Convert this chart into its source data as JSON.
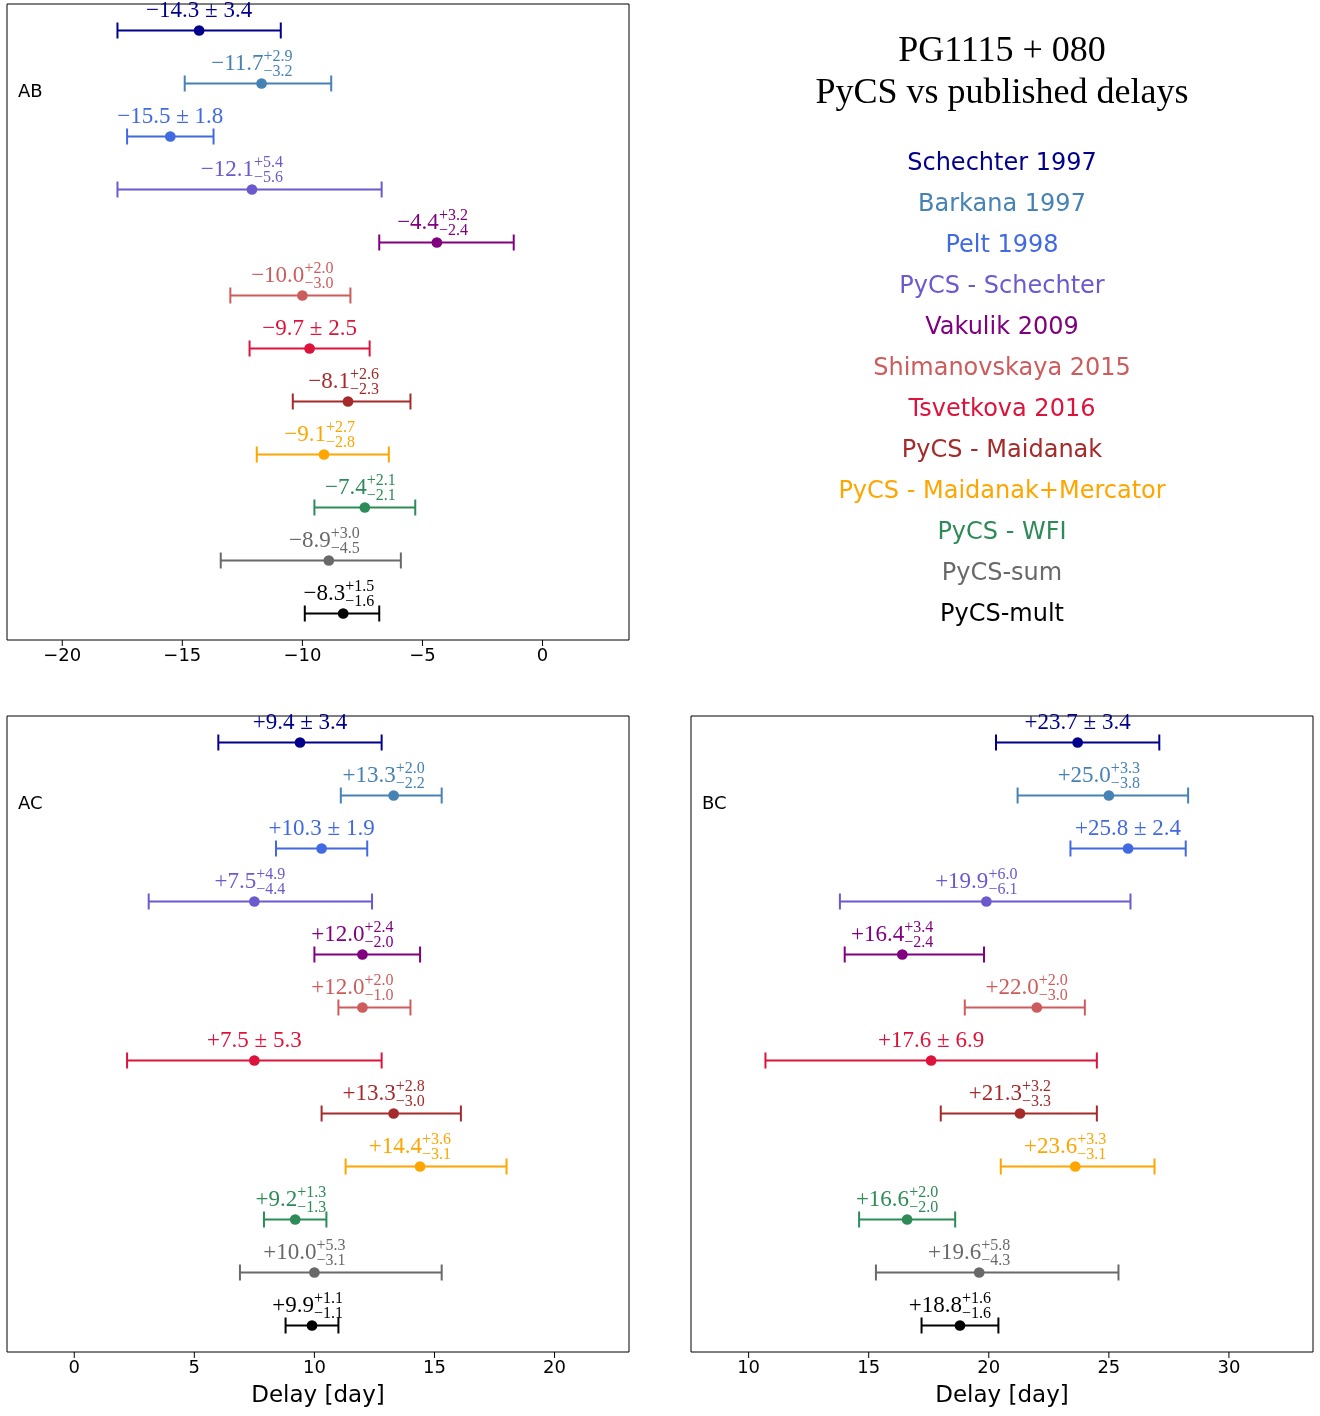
{
  "chart_data": [
    {
      "type": "scatter",
      "orientation": "horizontal",
      "legend": "right",
      "marker": "circle",
      "tick_labels": "x",
      "annotations": [
        "AB"
      ],
      "categories": [
        null,
        null,
        null,
        null,
        null,
        null,
        null,
        null,
        null,
        null,
        null,
        null
      ],
      "xlim": [
        -22.3,
        3.6
      ],
      "xticks": [
        -20,
        -15,
        -10,
        -5,
        0
      ],
      "series": [
        {
          "name": "Schechter 1997",
          "color": "#00008b",
          "values": [
            -14.3,
            null,
            null,
            null,
            null,
            null,
            null,
            null,
            null,
            null,
            null,
            null
          ],
          "errors": [
            3.4,
            null,
            null,
            null,
            null,
            null,
            null,
            null,
            null,
            null,
            null,
            null
          ],
          "value_labels": [
            "−14.3 ± 3.4",
            null,
            null,
            null,
            null,
            null,
            null,
            null,
            null,
            null,
            null,
            null
          ]
        },
        {
          "name": "Barkana 1997",
          "color": "#4682b4",
          "values": [
            null,
            -11.7,
            null,
            null,
            null,
            null,
            null,
            null,
            null,
            null,
            null,
            null
          ],
          "errors": [
            null,
            [
              -14.9,
              -8.8
            ],
            null,
            null,
            null,
            null,
            null,
            null,
            null,
            null,
            null,
            null
          ],
          "value_labels": [
            null,
            "−11.7$^{+2.9}$$_{−3.2}$",
            null,
            null,
            null,
            null,
            null,
            null,
            null,
            null,
            null,
            null
          ]
        },
        {
          "name": "Pelt 1998",
          "color": "#4169e1",
          "values": [
            null,
            null,
            -15.5,
            null,
            null,
            null,
            null,
            null,
            null,
            null,
            null,
            null
          ],
          "errors": [
            null,
            null,
            1.8,
            null,
            null,
            null,
            null,
            null,
            null,
            null,
            null,
            null
          ],
          "value_labels": [
            null,
            null,
            "−15.5 ± 1.8",
            null,
            null,
            null,
            null,
            null,
            null,
            null,
            null,
            null
          ]
        },
        {
          "name": "PyCS - Schechter",
          "color": "#6a5acd",
          "values": [
            null,
            null,
            null,
            -12.1,
            null,
            null,
            null,
            null,
            null,
            null,
            null,
            null
          ],
          "errors": [
            null,
            null,
            null,
            [
              -17.7,
              -6.7
            ],
            null,
            null,
            null,
            null,
            null,
            null,
            null,
            null
          ],
          "value_labels": [
            null,
            null,
            null,
            "−12.1$^{+5.4}$$_{−5.6}$",
            null,
            null,
            null,
            null,
            null,
            null,
            null,
            null
          ]
        },
        {
          "name": "Vakulik 2009",
          "color": "#800080",
          "values": [
            null,
            null,
            null,
            null,
            -4.4,
            null,
            null,
            null,
            null,
            null,
            null,
            null
          ],
          "errors": [
            null,
            null,
            null,
            null,
            [
              -6.8,
              -1.2
            ],
            null,
            null,
            null,
            null,
            null,
            null,
            null
          ],
          "value_labels": [
            null,
            null,
            null,
            null,
            "−4.4$^{+3.2}$$_{−2.4}$",
            null,
            null,
            null,
            null,
            null,
            null,
            null
          ]
        },
        {
          "name": "Shimanovskaya 2015",
          "color": "#cd5c5c",
          "values": [
            null,
            null,
            null,
            null,
            null,
            -10.0,
            null,
            null,
            null,
            null,
            null,
            null
          ],
          "errors": [
            null,
            null,
            null,
            null,
            null,
            [
              -13.0,
              -8.0
            ],
            null,
            null,
            null,
            null,
            null,
            null
          ],
          "value_labels": [
            null,
            null,
            null,
            null,
            null,
            "−10.0$^{+2.0}$$_{−3.0}$",
            null,
            null,
            null,
            null,
            null,
            null
          ]
        },
        {
          "name": "Tsvetkova 2016",
          "color": "#dc143c",
          "values": [
            null,
            null,
            null,
            null,
            null,
            null,
            -9.7,
            null,
            null,
            null,
            null,
            null
          ],
          "errors": [
            null,
            null,
            null,
            null,
            null,
            null,
            2.5,
            null,
            null,
            null,
            null,
            null
          ],
          "value_labels": [
            null,
            null,
            null,
            null,
            null,
            null,
            "−9.7 ± 2.5",
            null,
            null,
            null,
            null,
            null
          ]
        },
        {
          "name": "PyCS - Maidanak",
          "color": "#a52a2a",
          "values": [
            null,
            null,
            null,
            null,
            null,
            null,
            null,
            -8.1,
            null,
            null,
            null,
            null
          ],
          "errors": [
            null,
            null,
            null,
            null,
            null,
            null,
            null,
            [
              -10.4,
              -5.5
            ],
            null,
            null,
            null,
            null
          ],
          "value_labels": [
            null,
            null,
            null,
            null,
            null,
            null,
            null,
            "−8.1$^{+2.6}$$_{−2.3}$",
            null,
            null,
            null,
            null
          ]
        },
        {
          "name": "PyCS - Maidanak+Mercator",
          "color": "#ffa500",
          "values": [
            null,
            null,
            null,
            null,
            null,
            null,
            null,
            null,
            -9.1,
            null,
            null,
            null
          ],
          "errors": [
            null,
            null,
            null,
            null,
            null,
            null,
            null,
            null,
            [
              -11.9,
              -6.4
            ],
            null,
            null,
            null
          ],
          "value_labels": [
            null,
            null,
            null,
            null,
            null,
            null,
            null,
            null,
            "−9.1$^{+2.7}$$_{−2.8}$",
            null,
            null,
            null
          ]
        },
        {
          "name": "PyCS - WFI",
          "color": "#2e8b57",
          "values": [
            null,
            null,
            null,
            null,
            null,
            null,
            null,
            null,
            null,
            -7.4,
            null,
            null
          ],
          "errors": [
            null,
            null,
            null,
            null,
            null,
            null,
            null,
            null,
            null,
            [
              -9.5,
              -5.3
            ],
            null,
            null
          ],
          "value_labels": [
            null,
            null,
            null,
            null,
            null,
            null,
            null,
            null,
            null,
            "−7.4$^{+2.1}$$_{−2.1}$",
            null,
            null
          ]
        },
        {
          "name": "PyCS-sum",
          "color": "#696969",
          "values": [
            null,
            null,
            null,
            null,
            null,
            null,
            null,
            null,
            null,
            null,
            -8.9,
            null
          ],
          "errors": [
            null,
            null,
            null,
            null,
            null,
            null,
            null,
            null,
            null,
            null,
            [
              -13.4,
              -5.9
            ],
            null
          ],
          "value_labels": [
            null,
            null,
            null,
            null,
            null,
            null,
            null,
            null,
            null,
            null,
            "−8.9$^{+3.0}$$_{−4.5}$",
            null
          ]
        },
        {
          "name": "PyCS-mult",
          "color": "#000000",
          "values": [
            null,
            null,
            null,
            null,
            null,
            null,
            null,
            null,
            null,
            null,
            null,
            -8.3
          ],
          "errors": [
            null,
            null,
            null,
            null,
            null,
            null,
            null,
            null,
            null,
            null,
            null,
            [
              -9.9,
              -6.8
            ]
          ],
          "value_labels": [
            null,
            null,
            null,
            null,
            null,
            null,
            null,
            null,
            null,
            null,
            null,
            "−8.3$^{+1.5}$$_{−1.6}$"
          ]
        }
      ]
    },
    {
      "type": "scatter",
      "orientation": "horizontal",
      "xlabel": "Delay [day]",
      "marker": "circle",
      "tick_labels": "x",
      "annotations": [
        "AC"
      ],
      "categories": [
        null,
        null,
        null,
        null,
        null,
        null,
        null,
        null,
        null,
        null,
        null,
        null
      ],
      "xlim": [
        -2.8,
        23.1
      ],
      "xticks": [
        0,
        5,
        10,
        15,
        20
      ],
      "series": [
        {
          "color": "#00008b",
          "values": [
            9.4,
            null,
            null,
            null,
            null,
            null,
            null,
            null,
            null,
            null,
            null,
            null
          ],
          "errors": [
            3.4,
            null,
            null,
            null,
            null,
            null,
            null,
            null,
            null,
            null,
            null,
            null
          ],
          "value_labels": [
            "+9.4 ± 3.4",
            null,
            null,
            null,
            null,
            null,
            null,
            null,
            null,
            null,
            null,
            null
          ]
        },
        {
          "color": "#4682b4",
          "values": [
            null,
            13.3,
            null,
            null,
            null,
            null,
            null,
            null,
            null,
            null,
            null,
            null
          ],
          "errors": [
            null,
            [
              11.1,
              15.3
            ],
            null,
            null,
            null,
            null,
            null,
            null,
            null,
            null,
            null,
            null
          ],
          "value_labels": [
            null,
            "+13.3$^{+2.0}$$_{−2.2}$",
            null,
            null,
            null,
            null,
            null,
            null,
            null,
            null,
            null,
            null
          ]
        },
        {
          "color": "#4169e1",
          "values": [
            null,
            null,
            10.3,
            null,
            null,
            null,
            null,
            null,
            null,
            null,
            null,
            null
          ],
          "errors": [
            null,
            null,
            1.9,
            null,
            null,
            null,
            null,
            null,
            null,
            null,
            null,
            null
          ],
          "value_labels": [
            null,
            null,
            "+10.3 ± 1.9",
            null,
            null,
            null,
            null,
            null,
            null,
            null,
            null,
            null
          ]
        },
        {
          "color": "#6a5acd",
          "values": [
            null,
            null,
            null,
            7.5,
            null,
            null,
            null,
            null,
            null,
            null,
            null,
            null
          ],
          "errors": [
            null,
            null,
            null,
            [
              3.1,
              12.4
            ],
            null,
            null,
            null,
            null,
            null,
            null,
            null,
            null
          ],
          "value_labels": [
            null,
            null,
            null,
            "+7.5$^{+4.9}$$_{−4.4}$",
            null,
            null,
            null,
            null,
            null,
            null,
            null,
            null
          ]
        },
        {
          "color": "#800080",
          "values": [
            null,
            null,
            null,
            null,
            12.0,
            null,
            null,
            null,
            null,
            null,
            null,
            null
          ],
          "errors": [
            null,
            null,
            null,
            null,
            [
              10.0,
              14.4
            ],
            null,
            null,
            null,
            null,
            null,
            null,
            null
          ],
          "value_labels": [
            null,
            null,
            null,
            null,
            "+12.0$^{+2.4}$$_{−2.0}$",
            null,
            null,
            null,
            null,
            null,
            null,
            null
          ]
        },
        {
          "color": "#cd5c5c",
          "values": [
            null,
            null,
            null,
            null,
            null,
            12.0,
            null,
            null,
            null,
            null,
            null,
            null
          ],
          "errors": [
            null,
            null,
            null,
            null,
            null,
            [
              11.0,
              14.0
            ],
            null,
            null,
            null,
            null,
            null,
            null
          ],
          "value_labels": [
            null,
            null,
            null,
            null,
            null,
            "+12.0$^{+2.0}$$_{−1.0}$",
            null,
            null,
            null,
            null,
            null,
            null
          ]
        },
        {
          "color": "#dc143c",
          "values": [
            null,
            null,
            null,
            null,
            null,
            null,
            7.5,
            null,
            null,
            null,
            null,
            null
          ],
          "errors": [
            null,
            null,
            null,
            null,
            null,
            null,
            5.3,
            null,
            null,
            null,
            null,
            null
          ],
          "value_labels": [
            null,
            null,
            null,
            null,
            null,
            null,
            "+7.5 ± 5.3",
            null,
            null,
            null,
            null,
            null
          ]
        },
        {
          "color": "#a52a2a",
          "values": [
            null,
            null,
            null,
            null,
            null,
            null,
            null,
            13.3,
            null,
            null,
            null,
            null
          ],
          "errors": [
            null,
            null,
            null,
            null,
            null,
            null,
            null,
            [
              10.3,
              16.1
            ],
            null,
            null,
            null,
            null
          ],
          "value_labels": [
            null,
            null,
            null,
            null,
            null,
            null,
            null,
            "+13.3$^{+2.8}$$_{−3.0}$",
            null,
            null,
            null,
            null
          ]
        },
        {
          "color": "#ffa500",
          "values": [
            null,
            null,
            null,
            null,
            null,
            null,
            null,
            null,
            14.4,
            null,
            null,
            null
          ],
          "errors": [
            null,
            null,
            null,
            null,
            null,
            null,
            null,
            null,
            [
              11.3,
              18.0
            ],
            null,
            null,
            null
          ],
          "value_labels": [
            null,
            null,
            null,
            null,
            null,
            null,
            null,
            null,
            "+14.4$^{+3.6}$$_{−3.1}$",
            null,
            null,
            null
          ]
        },
        {
          "color": "#2e8b57",
          "values": [
            null,
            null,
            null,
            null,
            null,
            null,
            null,
            null,
            null,
            9.2,
            null,
            null
          ],
          "errors": [
            null,
            null,
            null,
            null,
            null,
            null,
            null,
            null,
            null,
            [
              7.9,
              10.5
            ],
            null,
            null
          ],
          "value_labels": [
            null,
            null,
            null,
            null,
            null,
            null,
            null,
            null,
            null,
            "+9.2$^{+1.3}$$_{−1.3}$",
            null,
            null
          ]
        },
        {
          "color": "#696969",
          "values": [
            null,
            null,
            null,
            null,
            null,
            null,
            null,
            null,
            null,
            null,
            10.0,
            null
          ],
          "errors": [
            null,
            null,
            null,
            null,
            null,
            null,
            null,
            null,
            null,
            null,
            [
              6.9,
              15.3
            ],
            null
          ],
          "value_labels": [
            null,
            null,
            null,
            null,
            null,
            null,
            null,
            null,
            null,
            null,
            "+10.0$^{+5.3}$$_{−3.1}$",
            null
          ]
        },
        {
          "color": "#000000",
          "values": [
            null,
            null,
            null,
            null,
            null,
            null,
            null,
            null,
            null,
            null,
            null,
            9.9
          ],
          "errors": [
            null,
            null,
            null,
            null,
            null,
            null,
            null,
            null,
            null,
            null,
            null,
            [
              8.8,
              11.0
            ]
          ],
          "value_labels": [
            null,
            null,
            null,
            null,
            null,
            null,
            null,
            null,
            null,
            null,
            null,
            "+9.9$^{+1.1}$$_{−1.1}$"
          ]
        }
      ]
    },
    {
      "type": "scatter",
      "orientation": "horizontal",
      "xlabel": "Delay [day]",
      "marker": "circle",
      "tick_labels": "x",
      "annotations": [
        "BC"
      ],
      "categories": [
        null,
        null,
        null,
        null,
        null,
        null,
        null,
        null,
        null,
        null,
        null,
        null
      ],
      "xlim": [
        7.6,
        33.5
      ],
      "xticks": [
        10,
        15,
        20,
        25,
        30
      ],
      "series": [
        {
          "color": "#00008b",
          "values": [
            23.7,
            null,
            null,
            null,
            null,
            null,
            null,
            null,
            null,
            null,
            null,
            null
          ],
          "errors": [
            3.4,
            null,
            null,
            null,
            null,
            null,
            null,
            null,
            null,
            null,
            null,
            null
          ],
          "value_labels": [
            "+23.7 ± 3.4",
            null,
            null,
            null,
            null,
            null,
            null,
            null,
            null,
            null,
            null,
            null
          ]
        },
        {
          "color": "#4682b4",
          "values": [
            null,
            25.0,
            null,
            null,
            null,
            null,
            null,
            null,
            null,
            null,
            null,
            null
          ],
          "errors": [
            null,
            [
              21.2,
              28.3
            ],
            null,
            null,
            null,
            null,
            null,
            null,
            null,
            null,
            null,
            null
          ],
          "value_labels": [
            null,
            "+25.0$^{+3.3}$$_{−3.8}$",
            null,
            null,
            null,
            null,
            null,
            null,
            null,
            null,
            null,
            null
          ]
        },
        {
          "color": "#4169e1",
          "values": [
            null,
            null,
            25.8,
            null,
            null,
            null,
            null,
            null,
            null,
            null,
            null,
            null
          ],
          "errors": [
            null,
            null,
            2.4,
            null,
            null,
            null,
            null,
            null,
            null,
            null,
            null,
            null
          ],
          "value_labels": [
            null,
            null,
            "+25.8 ± 2.4",
            null,
            null,
            null,
            null,
            null,
            null,
            null,
            null,
            null
          ]
        },
        {
          "color": "#6a5acd",
          "values": [
            null,
            null,
            null,
            19.9,
            null,
            null,
            null,
            null,
            null,
            null,
            null,
            null
          ],
          "errors": [
            null,
            null,
            null,
            [
              13.8,
              25.9
            ],
            null,
            null,
            null,
            null,
            null,
            null,
            null,
            null
          ],
          "value_labels": [
            null,
            null,
            null,
            "+19.9$^{+6.0}$$_{−6.1}$",
            null,
            null,
            null,
            null,
            null,
            null,
            null,
            null
          ]
        },
        {
          "color": "#800080",
          "values": [
            null,
            null,
            null,
            null,
            16.4,
            null,
            null,
            null,
            null,
            null,
            null,
            null
          ],
          "errors": [
            null,
            null,
            null,
            null,
            [
              14.0,
              19.8
            ],
            null,
            null,
            null,
            null,
            null,
            null,
            null
          ],
          "value_labels": [
            null,
            null,
            null,
            null,
            "+16.4$^{+3.4}$$_{−2.4}$",
            null,
            null,
            null,
            null,
            null,
            null,
            null
          ]
        },
        {
          "color": "#cd5c5c",
          "values": [
            null,
            null,
            null,
            null,
            null,
            22.0,
            null,
            null,
            null,
            null,
            null,
            null
          ],
          "errors": [
            null,
            null,
            null,
            null,
            null,
            [
              19.0,
              24.0
            ],
            null,
            null,
            null,
            null,
            null,
            null
          ],
          "value_labels": [
            null,
            null,
            null,
            null,
            null,
            "+22.0$^{+2.0}$$_{−3.0}$",
            null,
            null,
            null,
            null,
            null,
            null
          ]
        },
        {
          "color": "#dc143c",
          "values": [
            null,
            null,
            null,
            null,
            null,
            null,
            17.6,
            null,
            null,
            null,
            null,
            null
          ],
          "errors": [
            null,
            null,
            null,
            null,
            null,
            null,
            6.9,
            null,
            null,
            null,
            null,
            null
          ],
          "value_labels": [
            null,
            null,
            null,
            null,
            null,
            null,
            "+17.6 ± 6.9",
            null,
            null,
            null,
            null,
            null
          ]
        },
        {
          "color": "#a52a2a",
          "values": [
            null,
            null,
            null,
            null,
            null,
            null,
            null,
            21.3,
            null,
            null,
            null,
            null
          ],
          "errors": [
            null,
            null,
            null,
            null,
            null,
            null,
            null,
            [
              18.0,
              24.5
            ],
            null,
            null,
            null,
            null
          ],
          "value_labels": [
            null,
            null,
            null,
            null,
            null,
            null,
            null,
            "+21.3$^{+3.2}$$_{−3.3}$",
            null,
            null,
            null,
            null
          ]
        },
        {
          "color": "#ffa500",
          "values": [
            null,
            null,
            null,
            null,
            null,
            null,
            null,
            null,
            23.6,
            null,
            null,
            null
          ],
          "errors": [
            null,
            null,
            null,
            null,
            null,
            null,
            null,
            null,
            [
              20.5,
              26.9
            ],
            null,
            null,
            null
          ],
          "value_labels": [
            null,
            null,
            null,
            null,
            null,
            null,
            null,
            null,
            "+23.6$^{+3.3}$$_{−3.1}$",
            null,
            null,
            null
          ]
        },
        {
          "color": "#2e8b57",
          "values": [
            null,
            null,
            null,
            null,
            null,
            null,
            null,
            null,
            null,
            16.6,
            null,
            null
          ],
          "errors": [
            null,
            null,
            null,
            null,
            null,
            null,
            null,
            null,
            null,
            [
              14.6,
              18.6
            ],
            null,
            null
          ],
          "value_labels": [
            null,
            null,
            null,
            null,
            null,
            null,
            null,
            null,
            null,
            "+16.6$^{+2.0}$$_{−2.0}$",
            null,
            null
          ]
        },
        {
          "color": "#696969",
          "values": [
            null,
            null,
            null,
            null,
            null,
            null,
            null,
            null,
            null,
            null,
            19.6,
            null
          ],
          "errors": [
            null,
            null,
            null,
            null,
            null,
            null,
            null,
            null,
            null,
            null,
            [
              15.3,
              25.4
            ],
            null
          ],
          "value_labels": [
            null,
            null,
            null,
            null,
            null,
            null,
            null,
            null,
            null,
            null,
            "+19.6$^{+5.8}$$_{−4.3}$",
            null
          ]
        },
        {
          "color": "#000000",
          "values": [
            null,
            null,
            null,
            null,
            null,
            null,
            null,
            null,
            null,
            null,
            null,
            18.8
          ],
          "errors": [
            null,
            null,
            null,
            null,
            null,
            null,
            null,
            null,
            null,
            null,
            null,
            [
              17.2,
              20.4
            ]
          ],
          "value_labels": [
            null,
            null,
            null,
            null,
            null,
            null,
            null,
            null,
            null,
            null,
            null,
            "+18.8$^{+1.6}$$_{−1.6}$"
          ]
        }
      ]
    },
    {
      "type": "other",
      "title": "PG1115 + 080",
      "subtitle": "PyCS vs published delays"
    }
  ]
}
